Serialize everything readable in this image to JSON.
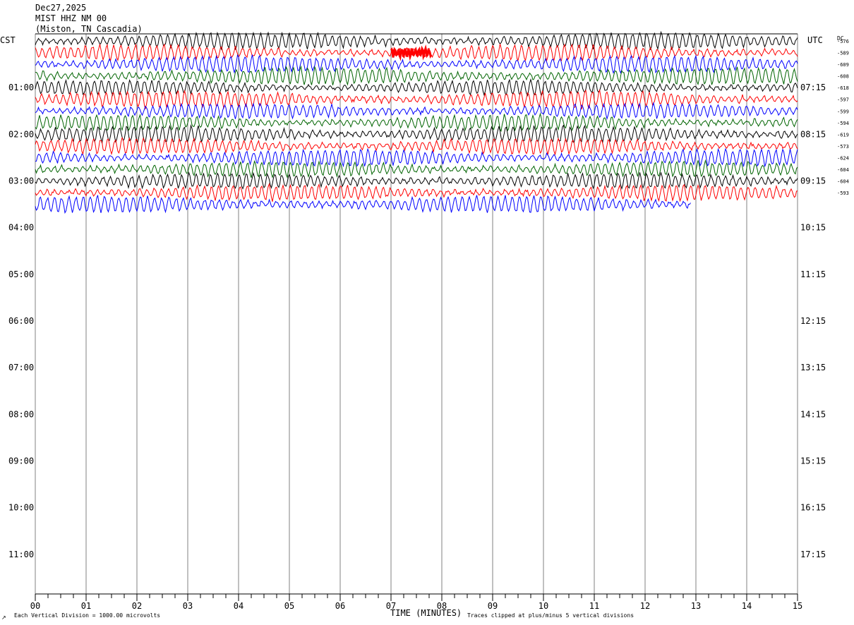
{
  "header": {
    "date": "Dec27,2025",
    "station": "MIST HHZ NM 00",
    "location": "(Miston, TN Cascadia)"
  },
  "left_timezone": "CST",
  "right_timezone": "UTC",
  "dc_label": "DC",
  "x_axis_title": "TIME (MINUTES)",
  "footer_left": "Each Vertical Division = 1000.00 microvolts",
  "footer_right": "Traces clipped at plus/minus 5 vertical divisions",
  "corner_mark": "↗",
  "colors": {
    "trace_cycle": [
      "#000000",
      "#ff0000",
      "#0000ff",
      "#006400"
    ],
    "grid": "#808080",
    "axis": "#000000",
    "background": "#ffffff"
  },
  "chart_data": {
    "type": "line",
    "description_type": "helicorder",
    "x_range_minutes": [
      0,
      15
    ],
    "x_tick_labels": [
      "00",
      "01",
      "02",
      "03",
      "04",
      "05",
      "06",
      "07",
      "08",
      "09",
      "10",
      "11",
      "12",
      "13",
      "14",
      "15"
    ],
    "x_minor_ticks_per_minute": 4,
    "left_hour_labels": [
      "01:00",
      "02:00",
      "03:00",
      "04:00",
      "05:00",
      "06:00",
      "07:00",
      "08:00",
      "09:00",
      "10:00",
      "11:00"
    ],
    "right_hour_labels": [
      "07:15",
      "08:15",
      "09:15",
      "10:15",
      "11:15",
      "12:15",
      "13:15",
      "14:15",
      "15:15",
      "16:15",
      "17:15"
    ],
    "rows_per_hour": 4,
    "row_minutes": 15,
    "total_rows": 48,
    "recorded_rows": 15,
    "last_row_end_minute": 12.9,
    "dc_offsets": [
      -576,
      -589,
      -609,
      -608,
      -618,
      -597,
      -599,
      -594,
      -619,
      -573,
      -624,
      -604,
      -604,
      -593
    ],
    "vertical_division_microvolts": 1000.0,
    "clip_divisions": 5,
    "events": [
      {
        "row": 1,
        "start_minute": 7.0,
        "end_minute": 7.8,
        "note": "burst"
      }
    ]
  }
}
